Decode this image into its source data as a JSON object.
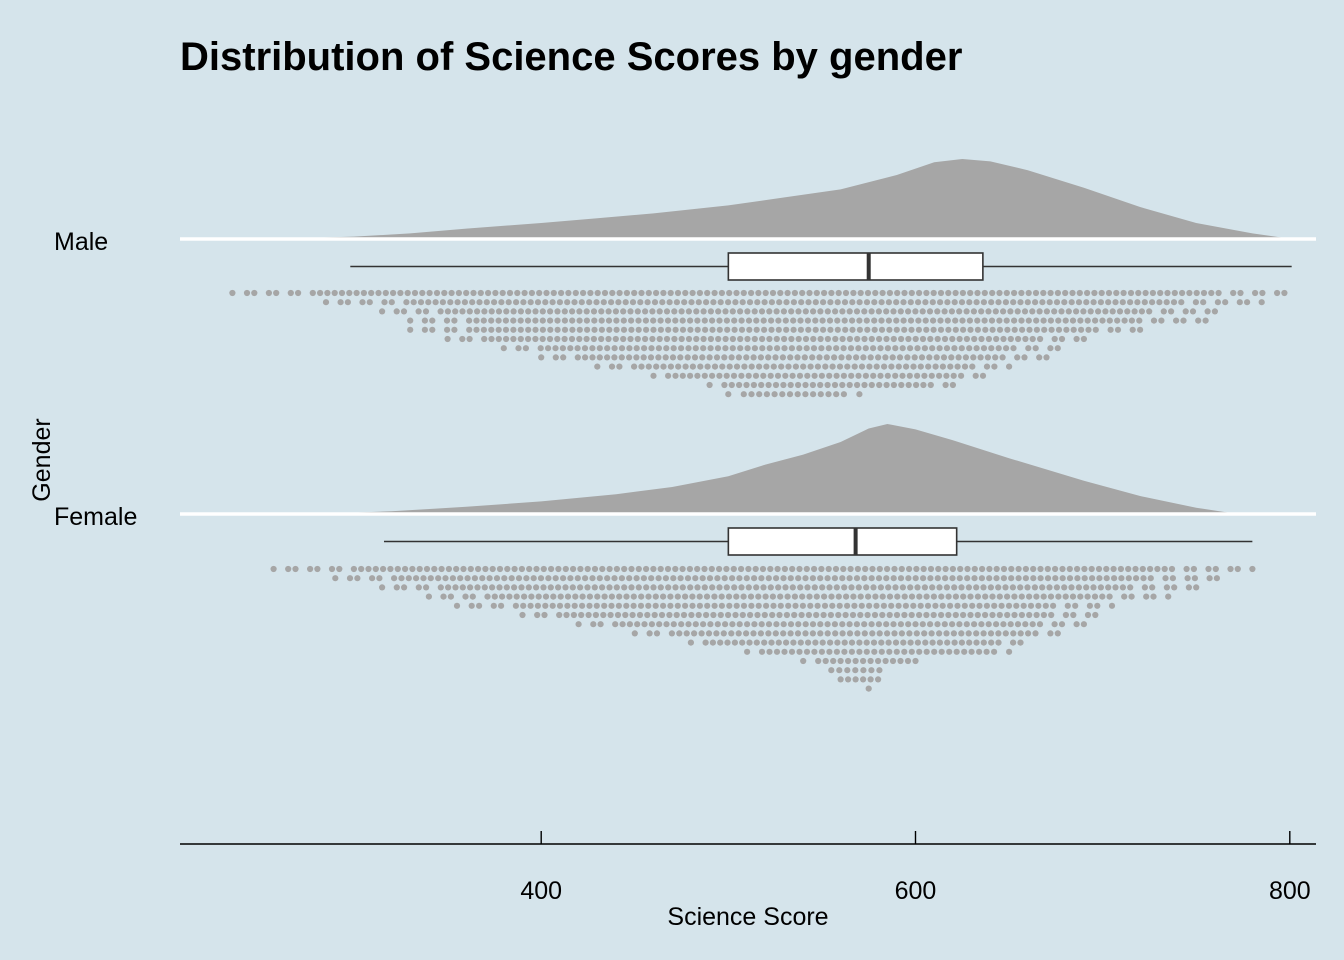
{
  "chart_data": {
    "type": "raincloud",
    "title": "Distribution of Science Scores by gender",
    "xlabel": "Science Score",
    "ylabel": "Gender",
    "xlim": [
      207,
      814
    ],
    "xticks": [
      400,
      600,
      800
    ],
    "grid": false,
    "background": "#d5e4eb",
    "density_color": "#a6a6a6",
    "dot_color": "#a6a6a6",
    "box_fill": "#ffffff",
    "box_stroke": "#333333",
    "categories": [
      {
        "name": "Male",
        "min": 298,
        "q1": 500,
        "median": 575,
        "q3": 636,
        "max": 801,
        "density_range": [
          235,
          801
        ],
        "density": [
          [
            235,
            0.0
          ],
          [
            270,
            0.01
          ],
          [
            300,
            0.03
          ],
          [
            330,
            0.07
          ],
          [
            360,
            0.13
          ],
          [
            400,
            0.2
          ],
          [
            430,
            0.26
          ],
          [
            460,
            0.32
          ],
          [
            500,
            0.42
          ],
          [
            530,
            0.52
          ],
          [
            560,
            0.62
          ],
          [
            590,
            0.8
          ],
          [
            610,
            0.96
          ],
          [
            625,
            1.0
          ],
          [
            640,
            0.97
          ],
          [
            660,
            0.86
          ],
          [
            690,
            0.64
          ],
          [
            720,
            0.4
          ],
          [
            750,
            0.2
          ],
          [
            780,
            0.07
          ],
          [
            801,
            0.0
          ]
        ],
        "dot_rows": [
          [
            235,
            801
          ],
          [
            285,
            785
          ],
          [
            315,
            760
          ],
          [
            330,
            755
          ],
          [
            330,
            720
          ],
          [
            350,
            690
          ],
          [
            380,
            680
          ],
          [
            400,
            670
          ],
          [
            430,
            650
          ],
          [
            460,
            640
          ],
          [
            490,
            620
          ],
          [
            500,
            570
          ]
        ]
      },
      {
        "name": "Female",
        "min": 316,
        "q1": 500,
        "median": 568,
        "q3": 622,
        "max": 780,
        "density_range": [
          280,
          772
        ],
        "density": [
          [
            280,
            0.0
          ],
          [
            320,
            0.03
          ],
          [
            360,
            0.08
          ],
          [
            400,
            0.14
          ],
          [
            440,
            0.22
          ],
          [
            470,
            0.3
          ],
          [
            500,
            0.42
          ],
          [
            520,
            0.55
          ],
          [
            540,
            0.66
          ],
          [
            560,
            0.8
          ],
          [
            575,
            0.95
          ],
          [
            585,
            1.0
          ],
          [
            600,
            0.94
          ],
          [
            620,
            0.82
          ],
          [
            650,
            0.62
          ],
          [
            690,
            0.37
          ],
          [
            720,
            0.2
          ],
          [
            750,
            0.07
          ],
          [
            772,
            0.0
          ]
        ],
        "dot_rows": [
          [
            257,
            780
          ],
          [
            290,
            765
          ],
          [
            315,
            750
          ],
          [
            340,
            735
          ],
          [
            355,
            705
          ],
          [
            390,
            700
          ],
          [
            420,
            690
          ],
          [
            450,
            680
          ],
          [
            480,
            660
          ],
          [
            510,
            650
          ],
          [
            540,
            600
          ],
          [
            555,
            585
          ],
          [
            560,
            580
          ],
          [
            575,
            575
          ]
        ]
      }
    ]
  }
}
